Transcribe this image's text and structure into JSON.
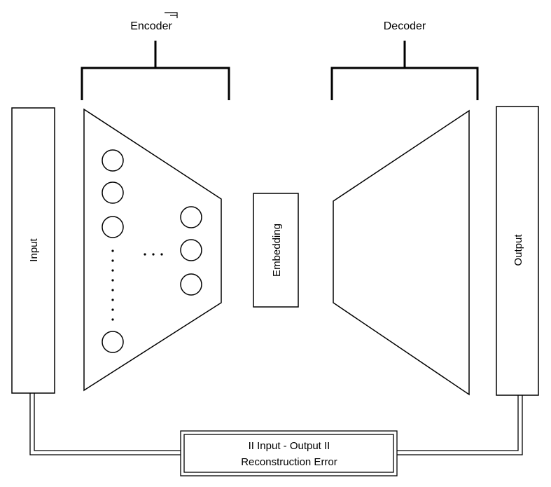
{
  "diagram": {
    "encoder_label": "Encoder",
    "decoder_label": "Decoder",
    "input_label": "Input",
    "output_label": "Output",
    "embedding_label": "Embedding",
    "error_line_1": "II Input - Output II",
    "error_line_2": "Reconstruction Error",
    "ellipsis_horizontal": "· · ·",
    "colors": {
      "stroke": "#000000",
      "fill": "#ffffff"
    }
  }
}
